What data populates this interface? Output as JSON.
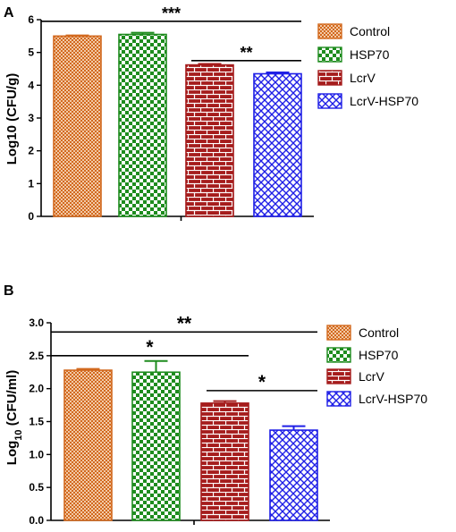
{
  "figure": {
    "panel_labels": [
      "A",
      "B"
    ]
  },
  "colors": {
    "control": "#d2691e",
    "hsp70": "#1e8c1e",
    "lcrv": "#a51c1c",
    "lcrv_hsp70": "#1f1fe6"
  },
  "chart_data": [
    {
      "panel": "A",
      "type": "bar",
      "categories": [
        "Control",
        "HSP70",
        "LcrV",
        "LcrV-HSP70"
      ],
      "values": [
        5.5,
        5.55,
        4.62,
        4.35
      ],
      "errors": [
        0.02,
        0.05,
        0.03,
        0.04
      ],
      "patterns": [
        "dots",
        "checker",
        "brick",
        "crosshatch"
      ],
      "ylabel": "Log10 (CFU/g)",
      "ylim": [
        0,
        6
      ],
      "yticks": [
        "0",
        "1",
        "2",
        "3",
        "4",
        "5",
        "6"
      ],
      "legend": [
        "Control",
        "HSP70",
        "LcrV",
        "LcrV-HSP70"
      ],
      "legend_position": "right",
      "significance": [
        {
          "from": 0,
          "to": 3,
          "y": 5.95,
          "label": "***"
        },
        {
          "from": 2,
          "to": 3,
          "y": 4.75,
          "label": "**"
        }
      ]
    },
    {
      "panel": "B",
      "type": "bar",
      "categories": [
        "Control",
        "HSP70",
        "LcrV",
        "LcrV-HSP70"
      ],
      "values": [
        2.28,
        2.25,
        1.78,
        1.37
      ],
      "errors": [
        0.02,
        0.17,
        0.03,
        0.06
      ],
      "patterns": [
        "dots",
        "checker",
        "brick",
        "crosshatch"
      ],
      "ylabel_main": "Log",
      "ylabel_sub": "10",
      "ylabel_rest": " (CFU/ml)",
      "ylim": [
        0,
        3
      ],
      "yticks": [
        "0.0",
        "0.5",
        "1.0",
        "1.5",
        "2.0",
        "2.5",
        "3.0"
      ],
      "legend": [
        "Control",
        "HSP70",
        "LcrV",
        "LcrV-HSP70"
      ],
      "legend_position": "right",
      "significance": [
        {
          "from": 0,
          "to": 3,
          "y": 2.86,
          "label": "**"
        },
        {
          "from": 0,
          "to": 2,
          "y": 2.5,
          "label": "*"
        },
        {
          "from": 2,
          "to": 3,
          "y": 1.97,
          "label": "*"
        }
      ]
    }
  ]
}
